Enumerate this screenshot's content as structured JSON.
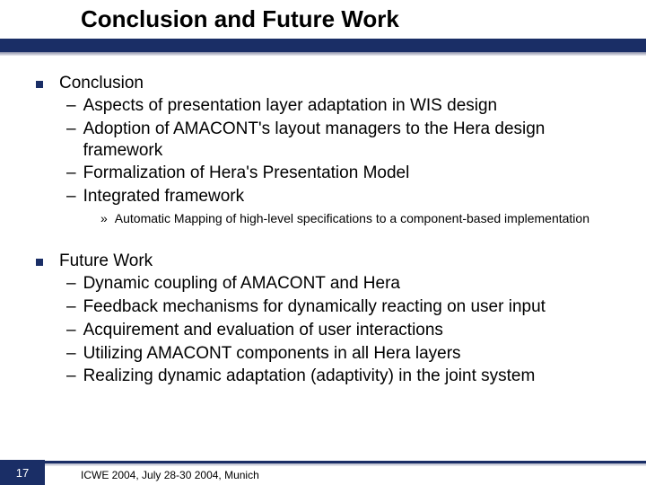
{
  "colors": {
    "brand_dark": "#1a2e66",
    "text": "#000000",
    "background": "#ffffff"
  },
  "typography": {
    "title_fontsize": 26,
    "body_fontsize": 19,
    "sub_fontsize": 14,
    "footer_fontsize": 12,
    "font_family": "Arial"
  },
  "title": "Conclusion and Future Work",
  "sections": [
    {
      "heading": "Conclusion",
      "items": [
        {
          "text": "Aspects of presentation layer adaptation in WIS design"
        },
        {
          "text": "Adoption of AMACONT's layout managers to the Hera design framework"
        },
        {
          "text": "Formalization of Hera's Presentation Model"
        },
        {
          "text": "Integrated framework",
          "sub": [
            "Automatic Mapping of high-level specifications to a component-based implementation"
          ]
        }
      ]
    },
    {
      "heading": "Future Work",
      "items": [
        {
          "text": "Dynamic coupling of AMACONT and Hera"
        },
        {
          "text": "Feedback mechanisms for dynamically reacting on user input"
        },
        {
          "text": "Acquirement and evaluation of user interactions"
        },
        {
          "text": "Utilizing AMACONT components in all Hera layers"
        },
        {
          "text": "Realizing dynamic adaptation (adaptivity) in the joint system"
        }
      ]
    }
  ],
  "footer": {
    "page_number": "17",
    "venue": "ICWE 2004, July 28-30 2004, Munich"
  }
}
